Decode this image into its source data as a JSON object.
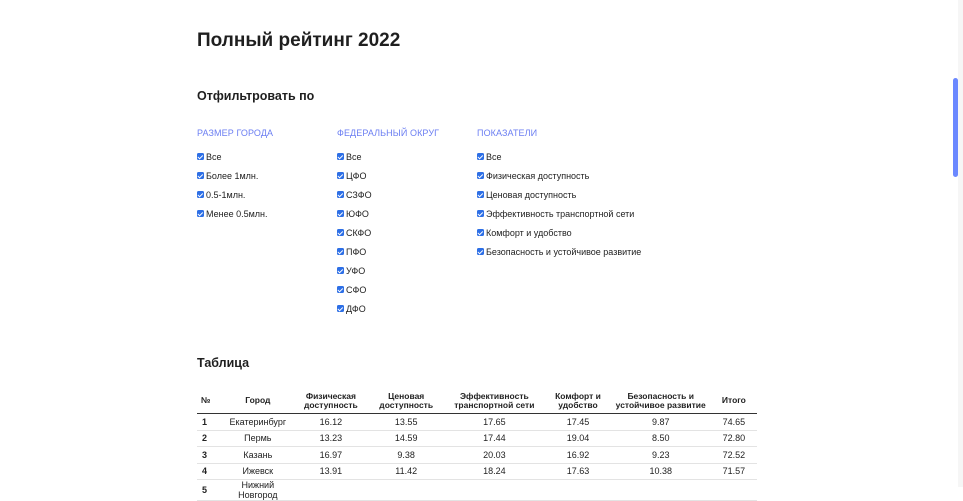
{
  "page": {
    "title": "Полный рейтинг 2022",
    "filter_title": "Отфильтровать по",
    "table_title": "Таблица"
  },
  "filters": {
    "size": {
      "header": "РАЗМЕР ГОРОДА",
      "options": [
        "Все",
        "Более 1млн.",
        "0.5-1млн.",
        "Менее 0.5млн."
      ]
    },
    "district": {
      "header": "ФЕДЕРАЛЬНЫЙ ОКРУГ",
      "options": [
        "Все",
        "ЦФО",
        "СЗФО",
        "ЮФО",
        "СКФО",
        "ПФО",
        "УФО",
        "СФО",
        "ДФО"
      ]
    },
    "indicators": {
      "header": "ПОКАЗАТЕЛИ",
      "options": [
        "Все",
        "Физическая доступность",
        "Ценовая доступность",
        "Эффективность транспортной сети",
        "Комфорт и удобство",
        "Безопасность и устойчивое развитие"
      ]
    }
  },
  "table": {
    "headers": [
      "№",
      "Город",
      "Физическая доступность",
      "Ценовая доступность",
      "Эффективность транспортной сети",
      "Комфорт и удобство",
      "Безопасность и устойчивое развитие",
      "Итого"
    ],
    "rows": [
      [
        "1",
        "Екатеринбург",
        "16.12",
        "13.55",
        "17.65",
        "17.45",
        "9.87",
        "74.65"
      ],
      [
        "2",
        "Пермь",
        "13.23",
        "14.59",
        "17.44",
        "19.04",
        "8.50",
        "72.80"
      ],
      [
        "3",
        "Казань",
        "16.97",
        "9.38",
        "20.03",
        "16.92",
        "9.23",
        "72.52"
      ],
      [
        "4",
        "Ижевск",
        "13.91",
        "11.42",
        "18.24",
        "17.63",
        "10.38",
        "71.57"
      ],
      [
        "5",
        "Нижний Новгород",
        "",
        "",
        "",
        "",
        "",
        ""
      ]
    ]
  },
  "colors": {
    "accent": "#6b7ef2",
    "checkbox": "#2d6fe6",
    "scrollbar": "#6b88ff"
  }
}
